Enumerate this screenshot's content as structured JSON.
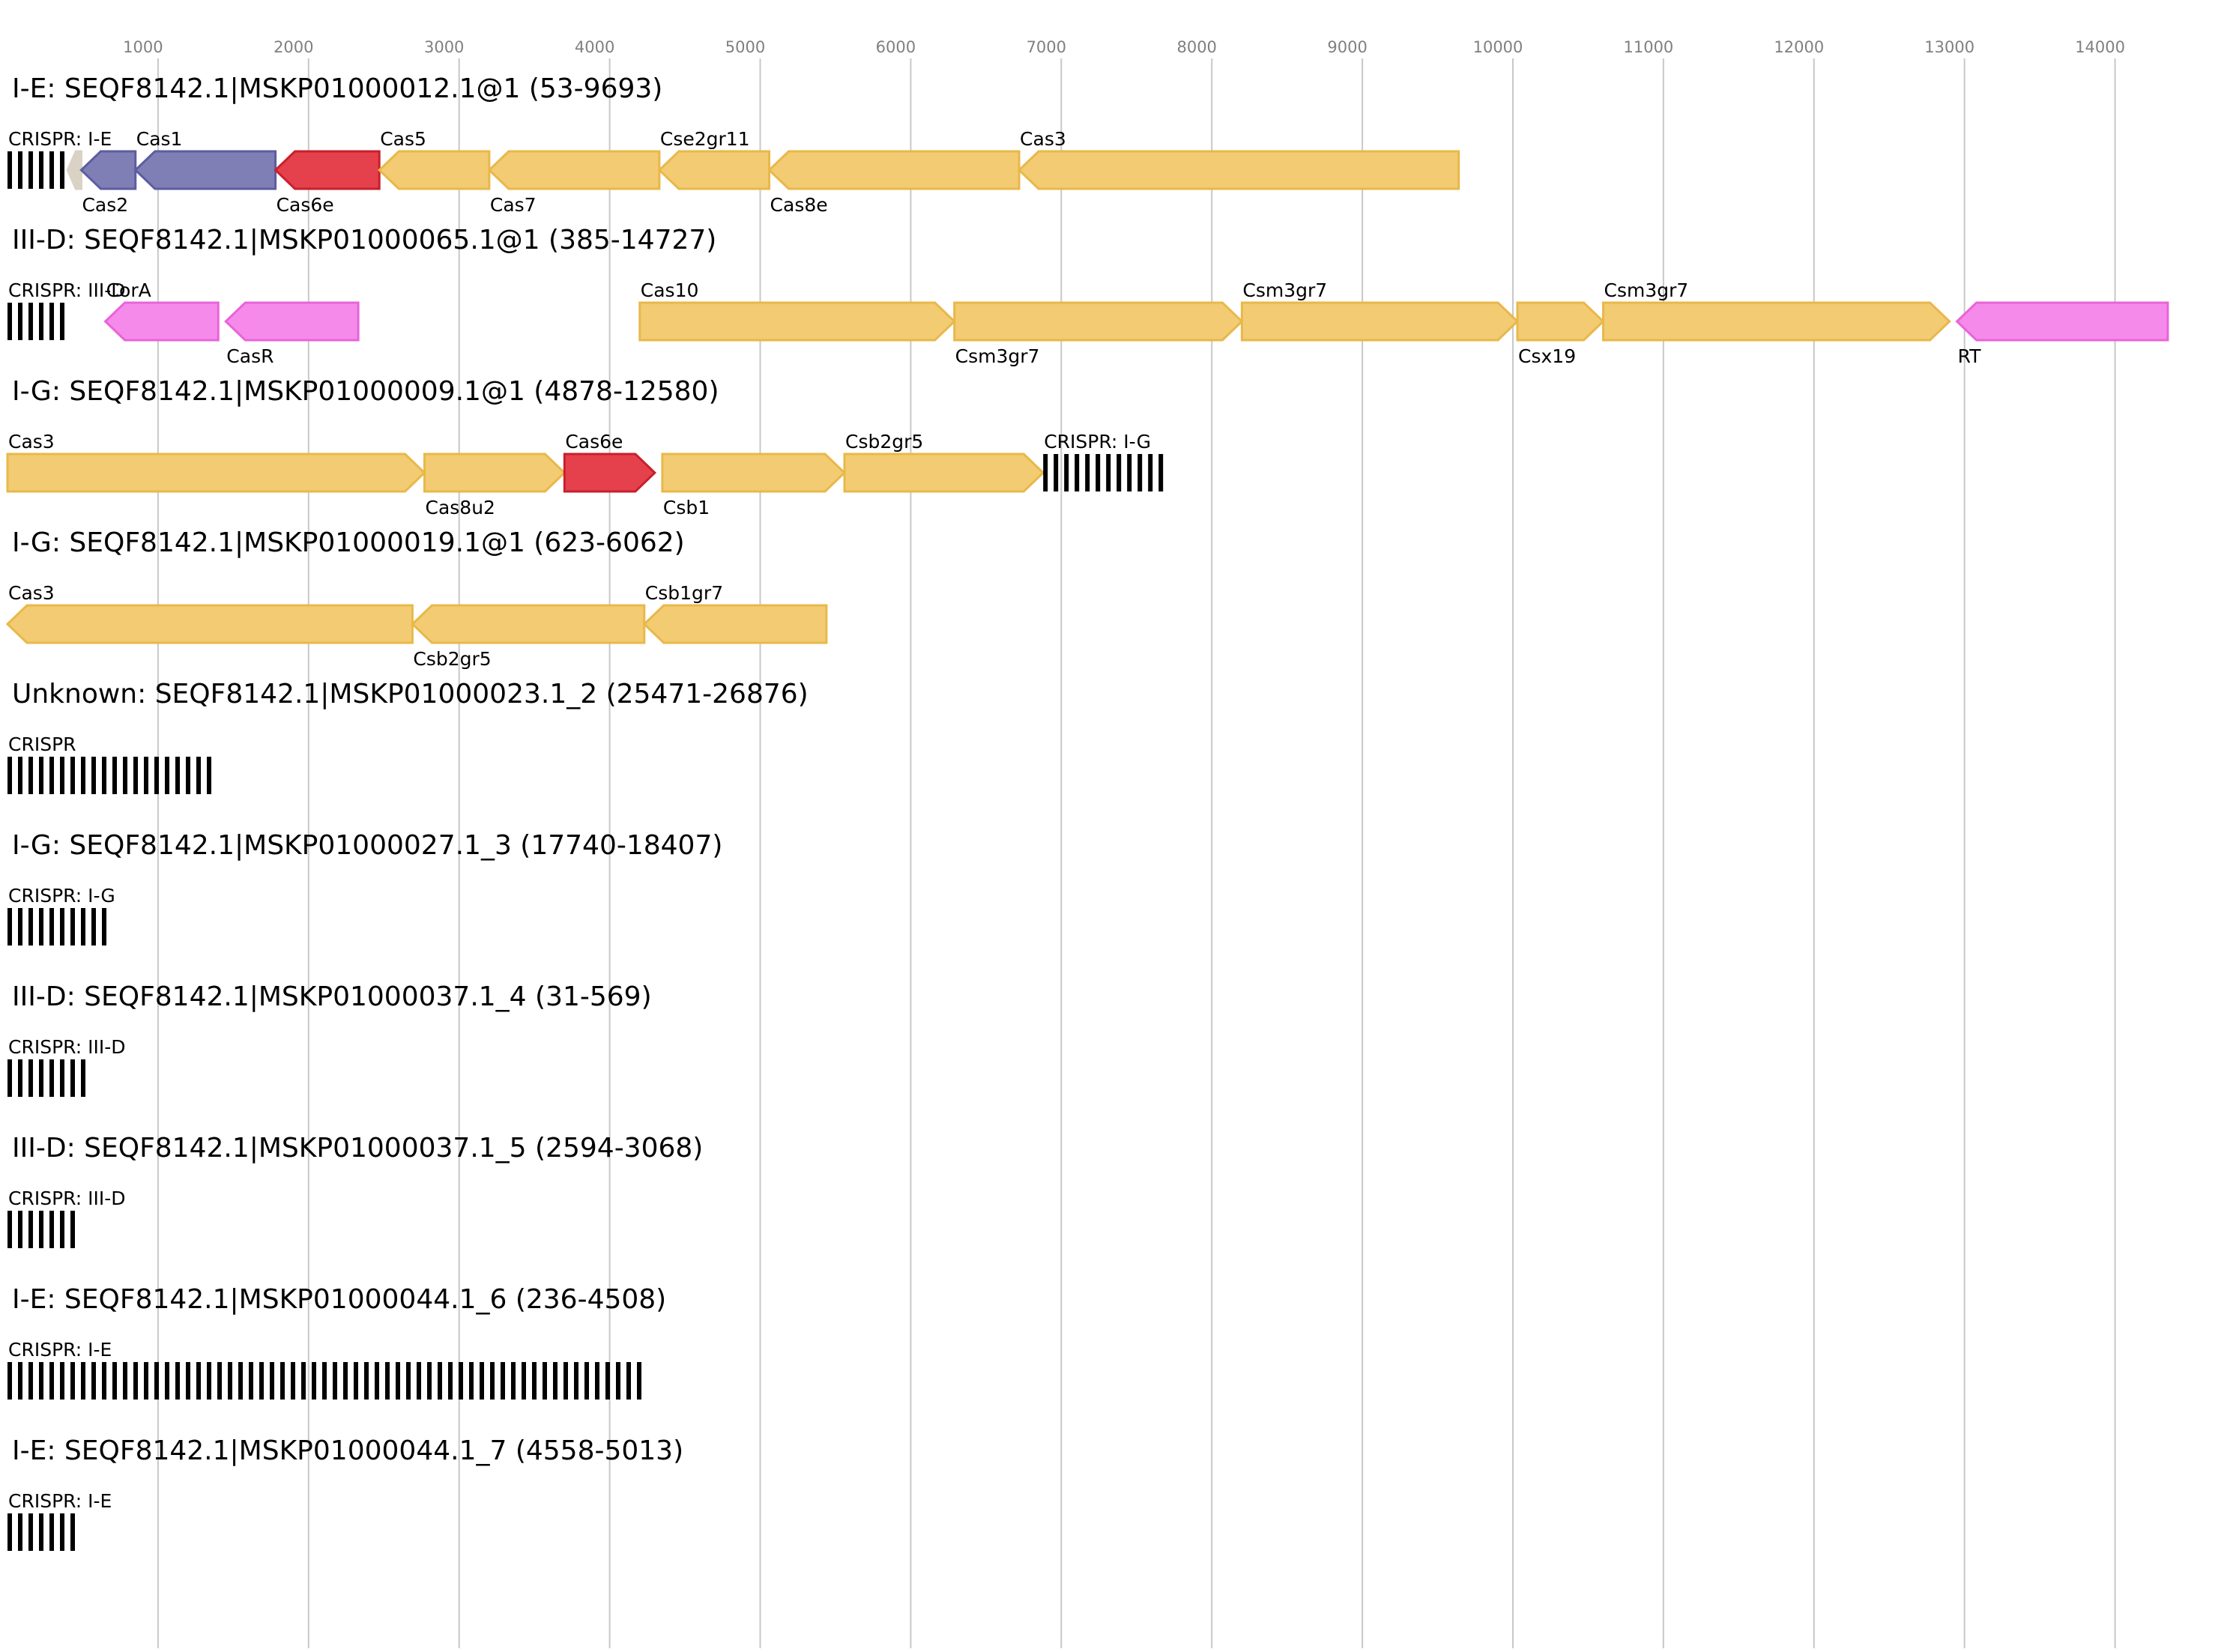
{
  "axis": {
    "ticks": [
      1000,
      2000,
      3000,
      4000,
      5000,
      6000,
      7000,
      8000,
      9000,
      10000,
      11000,
      12000,
      13000,
      14000
    ],
    "tick_labels": [
      "1000",
      "2000",
      "3000",
      "4000",
      "5000",
      "6000",
      "7000",
      "8000",
      "9000",
      "10000",
      "11000",
      "12000",
      "13000",
      "14000"
    ]
  },
  "colors": {
    "yellow_fill": "#f2cb73",
    "yellow_stroke": "#e8b84a",
    "blue_fill": "#7f7fb6",
    "blue_stroke": "#5d5da0",
    "red_fill": "#e5414c",
    "red_stroke": "#c8202c",
    "pink_fill": "#f68aeb",
    "pink_stroke": "#e864d9",
    "grey_fill": "#d9d2c5",
    "crispr": "#000000",
    "grid": "#c8c8c8",
    "tick_text": "#808080"
  },
  "tracks": [
    {
      "title": "I-E: SEQF8142.1|MSKP01000012.1@1 (53-9693)",
      "elements": [
        {
          "kind": "crispr",
          "start": 0,
          "end": 390,
          "label": "CRISPR: I-E",
          "pos": "above"
        },
        {
          "kind": "gene",
          "start": 400,
          "end": 490,
          "strand": "-",
          "color": "grey"
        },
        {
          "kind": "gene",
          "start": 490,
          "end": 850,
          "strand": "-",
          "color": "blue",
          "label": "Cas2",
          "pos": "below"
        },
        {
          "kind": "gene",
          "start": 850,
          "end": 1780,
          "strand": "-",
          "color": "blue",
          "label": "Cas1",
          "pos": "above"
        },
        {
          "kind": "gene",
          "start": 1780,
          "end": 2470,
          "strand": "-",
          "color": "red",
          "label": "Cas6e",
          "pos": "below"
        },
        {
          "kind": "gene",
          "start": 2470,
          "end": 3200,
          "strand": "-",
          "color": "yellow",
          "label": "Cas5",
          "pos": "above"
        },
        {
          "kind": "gene",
          "start": 3200,
          "end": 4330,
          "strand": "-",
          "color": "yellow",
          "label": "Cas7",
          "pos": "below"
        },
        {
          "kind": "gene",
          "start": 4330,
          "end": 5060,
          "strand": "-",
          "color": "yellow",
          "label": "Cse2gr11",
          "pos": "above"
        },
        {
          "kind": "gene",
          "start": 5060,
          "end": 6720,
          "strand": "-",
          "color": "yellow",
          "label": "Cas8e",
          "pos": "below"
        },
        {
          "kind": "gene",
          "start": 6720,
          "end": 9640,
          "strand": "-",
          "color": "yellow",
          "label": "Cas3",
          "pos": "above"
        }
      ]
    },
    {
      "title": "III-D: SEQF8142.1|MSKP01000065.1@1 (385-14727)",
      "elements": [
        {
          "kind": "crispr",
          "start": 0,
          "end": 390,
          "label": "CRISPR: III-D",
          "pos": "above"
        },
        {
          "kind": "gene",
          "start": 650,
          "end": 1400,
          "strand": "-",
          "color": "pink",
          "label": "CorA",
          "pos": "above"
        },
        {
          "kind": "gene",
          "start": 1450,
          "end": 2330,
          "strand": "-",
          "color": "pink",
          "label": "CasR",
          "pos": "below"
        },
        {
          "kind": "gene",
          "start": 4200,
          "end": 6290,
          "strand": "+",
          "color": "yellow",
          "label": "Cas10",
          "pos": "above"
        },
        {
          "kind": "gene",
          "start": 6290,
          "end": 8200,
          "strand": "+",
          "color": "yellow",
          "label": "Csm3gr7",
          "pos": "below"
        },
        {
          "kind": "gene",
          "start": 8200,
          "end": 10030,
          "strand": "+",
          "color": "yellow",
          "label": "Csm3gr7",
          "pos": "above"
        },
        {
          "kind": "gene",
          "start": 10030,
          "end": 10600,
          "strand": "+",
          "color": "yellow",
          "label": "Csx19",
          "pos": "below"
        },
        {
          "kind": "gene",
          "start": 10600,
          "end": 12900,
          "strand": "+",
          "color": "yellow",
          "label": "Csm3gr7",
          "pos": "above"
        },
        {
          "kind": "gene",
          "start": 12950,
          "end": 14350,
          "strand": "-",
          "color": "pink",
          "label": "RT",
          "pos": "below"
        }
      ]
    },
    {
      "title": "I-G: SEQF8142.1|MSKP01000009.1@1 (4878-12580)",
      "elements": [
        {
          "kind": "gene",
          "start": 0,
          "end": 2770,
          "strand": "+",
          "color": "yellow",
          "label": "Cas3",
          "pos": "above"
        },
        {
          "kind": "gene",
          "start": 2770,
          "end": 3700,
          "strand": "+",
          "color": "yellow",
          "label": "Cas8u2",
          "pos": "below"
        },
        {
          "kind": "gene",
          "start": 3700,
          "end": 4300,
          "strand": "+",
          "color": "red",
          "label": "Cas6e",
          "pos": "above"
        },
        {
          "kind": "gene",
          "start": 4350,
          "end": 5560,
          "strand": "+",
          "color": "yellow",
          "label": "Csb1",
          "pos": "below"
        },
        {
          "kind": "gene",
          "start": 5560,
          "end": 6880,
          "strand": "+",
          "color": "yellow",
          "label": "Csb2gr5",
          "pos": "above"
        },
        {
          "kind": "crispr",
          "start": 6880,
          "end": 7700,
          "label": "CRISPR: I-G",
          "pos": "above"
        }
      ]
    },
    {
      "title": "I-G: SEQF8142.1|MSKP01000019.1@1 (623-6062)",
      "elements": [
        {
          "kind": "gene",
          "start": 0,
          "end": 2690,
          "strand": "-",
          "color": "yellow",
          "label": "Cas3",
          "pos": "above"
        },
        {
          "kind": "gene",
          "start": 2690,
          "end": 4230,
          "strand": "-",
          "color": "yellow",
          "label": "Csb2gr5",
          "pos": "below"
        },
        {
          "kind": "gene",
          "start": 4230,
          "end": 5440,
          "strand": "-",
          "color": "yellow",
          "label": "Csb1gr7",
          "pos": "above"
        }
      ]
    },
    {
      "title": "Unknown: SEQF8142.1|MSKP01000023.1_2 (25471-26876)",
      "elements": [
        {
          "kind": "crispr",
          "start": 0,
          "end": 1400,
          "label": "CRISPR",
          "pos": "above"
        }
      ]
    },
    {
      "title": "I-G: SEQF8142.1|MSKP01000027.1_3 (17740-18407)",
      "elements": [
        {
          "kind": "crispr",
          "start": 0,
          "end": 670,
          "label": "CRISPR: I-G",
          "pos": "above"
        }
      ]
    },
    {
      "title": "III-D: SEQF8142.1|MSKP01000037.1_4 (31-569)",
      "elements": [
        {
          "kind": "crispr",
          "start": 0,
          "end": 540,
          "label": "CRISPR: III-D",
          "pos": "above"
        }
      ]
    },
    {
      "title": "III-D: SEQF8142.1|MSKP01000037.1_5 (2594-3068)",
      "elements": [
        {
          "kind": "crispr",
          "start": 0,
          "end": 475,
          "label": "CRISPR: III-D",
          "pos": "above"
        }
      ]
    },
    {
      "title": "I-E: SEQF8142.1|MSKP01000044.1_6 (236-4508)",
      "elements": [
        {
          "kind": "crispr",
          "start": 0,
          "end": 4270,
          "label": "CRISPR: I-E",
          "pos": "above"
        }
      ]
    },
    {
      "title": "I-E: SEQF8142.1|MSKP01000044.1_7 (4558-5013)",
      "elements": [
        {
          "kind": "crispr",
          "start": 0,
          "end": 455,
          "label": "CRISPR: I-E",
          "pos": "above"
        }
      ]
    }
  ]
}
